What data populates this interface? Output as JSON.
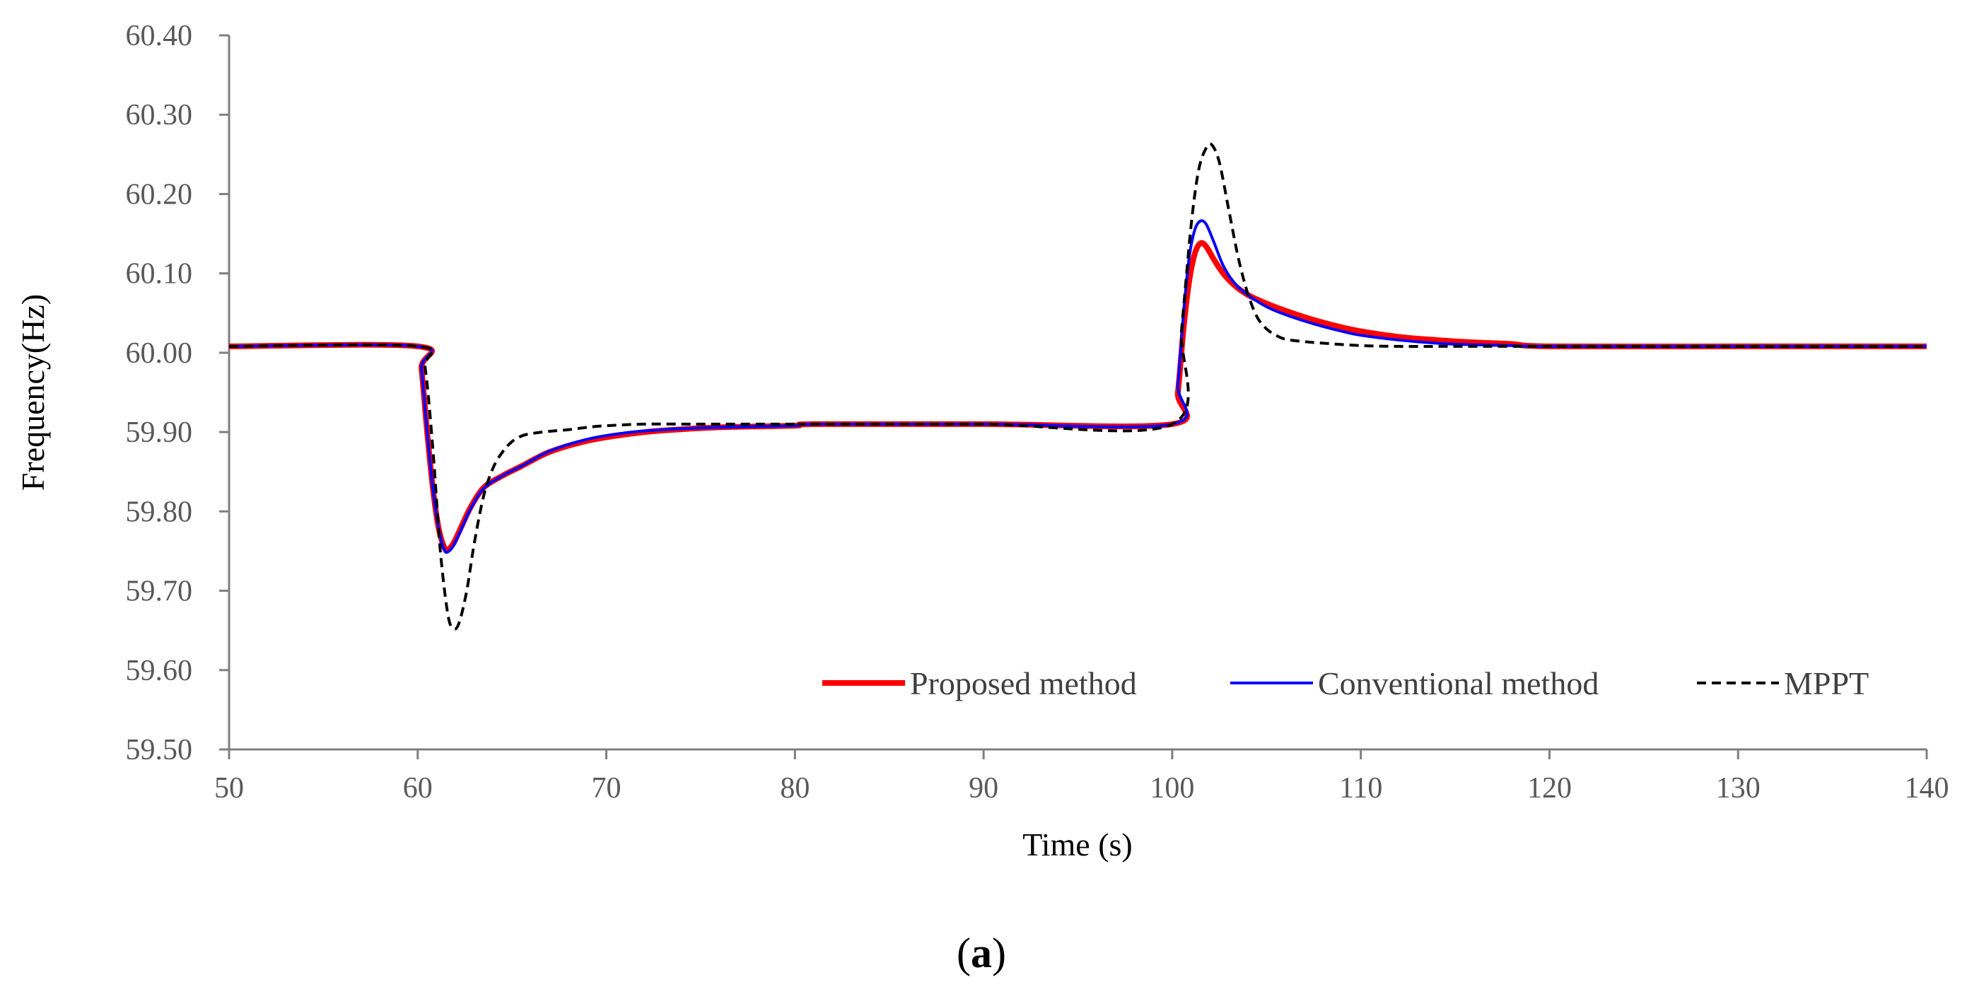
{
  "chart_data": {
    "type": "line",
    "title": "",
    "xlabel": "Time (s)",
    "ylabel": "Frequency(Hz)",
    "xlim": [
      50,
      140
    ],
    "ylim": [
      59.5,
      60.4
    ],
    "xticks": [
      50,
      60,
      70,
      80,
      90,
      100,
      110,
      120,
      130,
      140
    ],
    "xtick_labels": [
      "50",
      "60",
      "70",
      "80",
      "90",
      "100",
      "110",
      "120",
      "130",
      "140"
    ],
    "yticks": [
      59.5,
      59.6,
      59.7,
      59.8,
      59.9,
      60.0,
      60.1,
      60.2,
      60.3,
      60.4
    ],
    "ytick_labels": [
      "59.50",
      "59.60",
      "59.70",
      "59.80",
      "59.90",
      "60.00",
      "60.10",
      "60.20",
      "60.30",
      "60.40"
    ],
    "grid": false,
    "legend_position": "bottom-right",
    "series": [
      {
        "name": "Proposed method",
        "color": "#ff0000",
        "style": "solid",
        "x": [
          50,
          60,
          60.2,
          60.5,
          60.8,
          61.1,
          61.4,
          61.6,
          61.9,
          62.3,
          62.8,
          63.5,
          64.5,
          65.5,
          67,
          69,
          71,
          73,
          76,
          80,
          81,
          90,
          100,
          100.3,
          100.6,
          100.9,
          101.2,
          101.5,
          101.8,
          102.2,
          102.7,
          103.3,
          104,
          105,
          106,
          107,
          108,
          109,
          110,
          112,
          114,
          116,
          118,
          120,
          130,
          140
        ],
        "y": [
          60.008,
          60.008,
          59.98,
          59.9,
          59.83,
          59.78,
          59.755,
          59.752,
          59.76,
          59.78,
          59.805,
          59.83,
          59.845,
          59.857,
          59.875,
          59.889,
          59.897,
          59.902,
          59.906,
          59.908,
          59.91,
          59.91,
          59.91,
          59.95,
          60.03,
          60.09,
          60.125,
          60.138,
          60.134,
          60.118,
          60.1,
          60.085,
          60.073,
          60.062,
          60.053,
          60.045,
          60.038,
          60.032,
          60.027,
          60.02,
          60.016,
          60.013,
          60.011,
          60.008,
          60.008,
          60.008
        ]
      },
      {
        "name": "Conventional method",
        "color": "#0000ff",
        "style": "solid",
        "x": [
          50,
          60,
          60.2,
          60.5,
          60.8,
          61.1,
          61.4,
          61.6,
          61.9,
          62.3,
          62.8,
          63.5,
          64.5,
          65.5,
          67,
          69,
          71,
          73,
          76,
          80,
          81,
          90,
          100,
          100.3,
          100.6,
          100.9,
          101.2,
          101.5,
          101.8,
          102.2,
          102.7,
          103.3,
          104,
          105,
          106,
          107,
          108,
          109,
          110,
          112,
          114,
          116,
          118,
          120,
          130,
          140
        ],
        "y": [
          60.008,
          60.008,
          59.98,
          59.9,
          59.83,
          59.78,
          59.752,
          59.749,
          59.757,
          59.777,
          59.803,
          59.829,
          59.845,
          59.857,
          59.876,
          59.891,
          59.899,
          59.903,
          59.906,
          59.908,
          59.91,
          59.91,
          59.91,
          59.96,
          60.05,
          60.12,
          60.155,
          60.166,
          60.162,
          60.14,
          60.11,
          60.088,
          60.073,
          60.058,
          60.048,
          60.04,
          60.033,
          60.027,
          60.022,
          60.016,
          60.012,
          60.01,
          60.009,
          60.008,
          60.008,
          60.008
        ]
      },
      {
        "name": "MPPT",
        "color": "#000000",
        "style": "dashed",
        "x": [
          50,
          60,
          60.4,
          60.8,
          61.2,
          61.6,
          61.9,
          62.2,
          62.6,
          63,
          63.5,
          64,
          64.5,
          65,
          65.5,
          66,
          67,
          68,
          69,
          70,
          72,
          75,
          80,
          81,
          90,
          100,
          100.5,
          101,
          101.4,
          101.8,
          102.1,
          102.5,
          103,
          103.5,
          104,
          104.5,
          105,
          105.5,
          106,
          107,
          108,
          110,
          112,
          115,
          120,
          130,
          140
        ],
        "y": [
          60.008,
          60.008,
          59.98,
          59.88,
          59.75,
          59.67,
          59.652,
          59.66,
          59.7,
          59.76,
          59.82,
          59.855,
          59.875,
          59.888,
          59.895,
          59.898,
          59.901,
          59.903,
          59.906,
          59.908,
          59.91,
          59.91,
          59.91,
          59.91,
          59.91,
          59.91,
          60.03,
          60.16,
          60.23,
          60.258,
          60.262,
          60.24,
          60.18,
          60.12,
          60.075,
          60.045,
          60.03,
          60.022,
          60.017,
          60.014,
          60.012,
          60.009,
          60.008,
          60.008,
          60.008,
          60.008,
          60.008
        ]
      }
    ]
  },
  "caption": {
    "open": "(",
    "letter": "a",
    "close": ")"
  }
}
